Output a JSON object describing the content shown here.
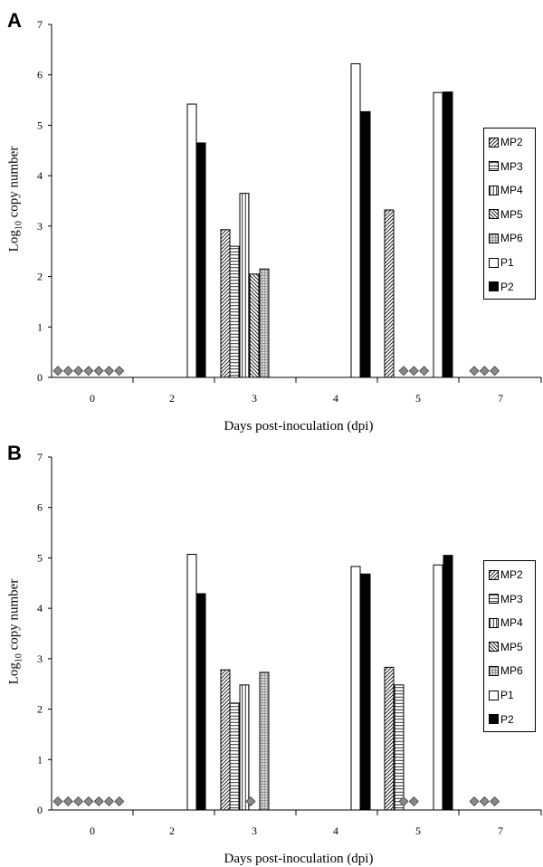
{
  "chart_data": [
    {
      "panel": "A",
      "type": "bar",
      "xlabel": "Days post-inoculation (dpi)",
      "ylabel_prefix": "Log",
      "ylabel_sub": "10",
      "ylabel_suffix": " copy number",
      "ylim": [
        0,
        7
      ],
      "yticks": [
        "0",
        "1",
        "2",
        "3",
        "4",
        "5",
        "6",
        "7"
      ],
      "categories": [
        "0",
        "2",
        "3",
        "4",
        "5",
        "7"
      ],
      "series": [
        {
          "name": "MP2",
          "values": [
            null,
            null,
            2.93,
            null,
            3.32,
            null
          ],
          "pattern": "diag-fwd",
          "fill": "#ffffff"
        },
        {
          "name": "MP3",
          "values": [
            null,
            null,
            2.6,
            null,
            null,
            null
          ],
          "pattern": "horiz",
          "fill": "#ffffff"
        },
        {
          "name": "MP4",
          "values": [
            null,
            null,
            3.65,
            null,
            null,
            null
          ],
          "pattern": "vert",
          "fill": "#ffffff"
        },
        {
          "name": "MP5",
          "values": [
            null,
            null,
            2.05,
            null,
            null,
            null
          ],
          "pattern": "diag-back",
          "fill": "#ffffff"
        },
        {
          "name": "MP6",
          "values": [
            null,
            null,
            2.15,
            null,
            null,
            null
          ],
          "pattern": "grid",
          "fill": "#d8d8d8"
        },
        {
          "name": "P1",
          "values": [
            null,
            5.42,
            null,
            6.22,
            5.65,
            null
          ],
          "pattern": "none",
          "fill": "#ffffff"
        },
        {
          "name": "P2",
          "values": [
            null,
            4.65,
            null,
            5.27,
            5.66,
            null
          ],
          "pattern": "none",
          "fill": "#000000"
        }
      ],
      "undetected_markers": [
        {
          "category": "0",
          "count": 7
        },
        {
          "category": "5",
          "count": 3
        },
        {
          "category": "7",
          "count": 3
        }
      ],
      "marker_value": 0.13,
      "marker_color": "#888888"
    },
    {
      "panel": "B",
      "type": "bar",
      "xlabel": "Days post-inoculation (dpi)",
      "ylabel_prefix": "Log",
      "ylabel_sub": "10",
      "ylabel_suffix": " copy number",
      "ylim": [
        0,
        7
      ],
      "yticks": [
        "0",
        "1",
        "2",
        "3",
        "4",
        "5",
        "6",
        "7"
      ],
      "categories": [
        "0",
        "2",
        "3",
        "4",
        "5",
        "7"
      ],
      "series": [
        {
          "name": "MP2",
          "values": [
            null,
            null,
            2.78,
            null,
            2.83,
            null
          ],
          "pattern": "diag-fwd",
          "fill": "#ffffff"
        },
        {
          "name": "MP3",
          "values": [
            null,
            null,
            2.12,
            null,
            2.48,
            null
          ],
          "pattern": "horiz",
          "fill": "#ffffff"
        },
        {
          "name": "MP4",
          "values": [
            null,
            null,
            2.48,
            null,
            null,
            null
          ],
          "pattern": "vert",
          "fill": "#ffffff"
        },
        {
          "name": "MP5",
          "values": [
            null,
            null,
            null,
            null,
            null,
            null
          ],
          "pattern": "diag-back",
          "fill": "#ffffff"
        },
        {
          "name": "MP6",
          "values": [
            null,
            null,
            2.73,
            null,
            null,
            null
          ],
          "pattern": "grid",
          "fill": "#d8d8d8"
        },
        {
          "name": "P1",
          "values": [
            null,
            5.07,
            null,
            4.83,
            4.86,
            null
          ],
          "pattern": "none",
          "fill": "#ffffff"
        },
        {
          "name": "P2",
          "values": [
            null,
            4.29,
            null,
            4.68,
            5.05,
            null
          ],
          "pattern": "none",
          "fill": "#000000"
        }
      ],
      "undetected_markers": [
        {
          "category": "0",
          "count": 7
        },
        {
          "category": "3",
          "count": 1
        },
        {
          "category": "5",
          "count": 2
        },
        {
          "category": "7",
          "count": 3
        }
      ],
      "marker_value": 0.17,
      "marker_color": "#888888"
    }
  ],
  "panel_letters": [
    "A",
    "B"
  ],
  "legend_labels": [
    "MP2",
    "MP3",
    "MP4",
    "MP5",
    "MP6",
    "P1",
    "P2"
  ]
}
